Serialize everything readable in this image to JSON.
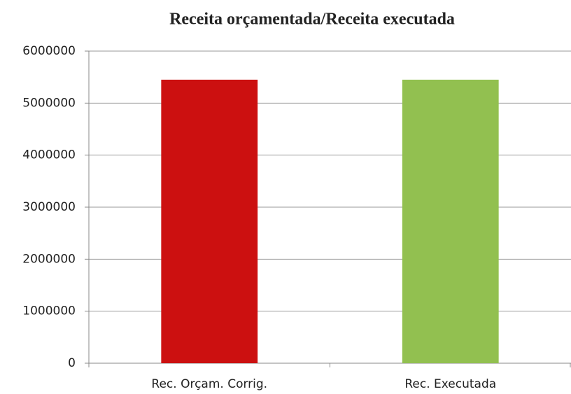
{
  "chart_data": {
    "type": "bar",
    "title": "Receita orçamentada/Receita executada",
    "categories": [
      "Rec. Orçam. Corrig.",
      "Rec. Executada"
    ],
    "values": [
      5450000,
      5450000
    ],
    "colors": [
      "#cc1010",
      "#92c050"
    ],
    "ylim": [
      0,
      6000000
    ],
    "yticks": [
      0,
      1000000,
      2000000,
      3000000,
      4000000,
      5000000,
      6000000
    ],
    "grid": true
  }
}
